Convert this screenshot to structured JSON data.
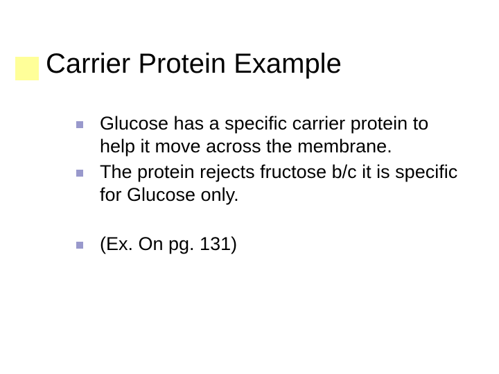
{
  "accent_color": "#ffff99",
  "bullet_color": "#9999cc",
  "title_color": "#000000",
  "text_color": "#000000",
  "background_color": "#ffffff",
  "title_fontsize": 40,
  "body_fontsize": 27,
  "title": "Carrier Protein Example",
  "bullets": [
    {
      "text": "Glucose has a specific carrier protein to help it move across the membrane."
    },
    {
      "text": "The protein rejects fructose b/c it is specific for Glucose only."
    }
  ],
  "bullets2": [
    {
      "text": "(Ex. On pg. 131)"
    }
  ]
}
